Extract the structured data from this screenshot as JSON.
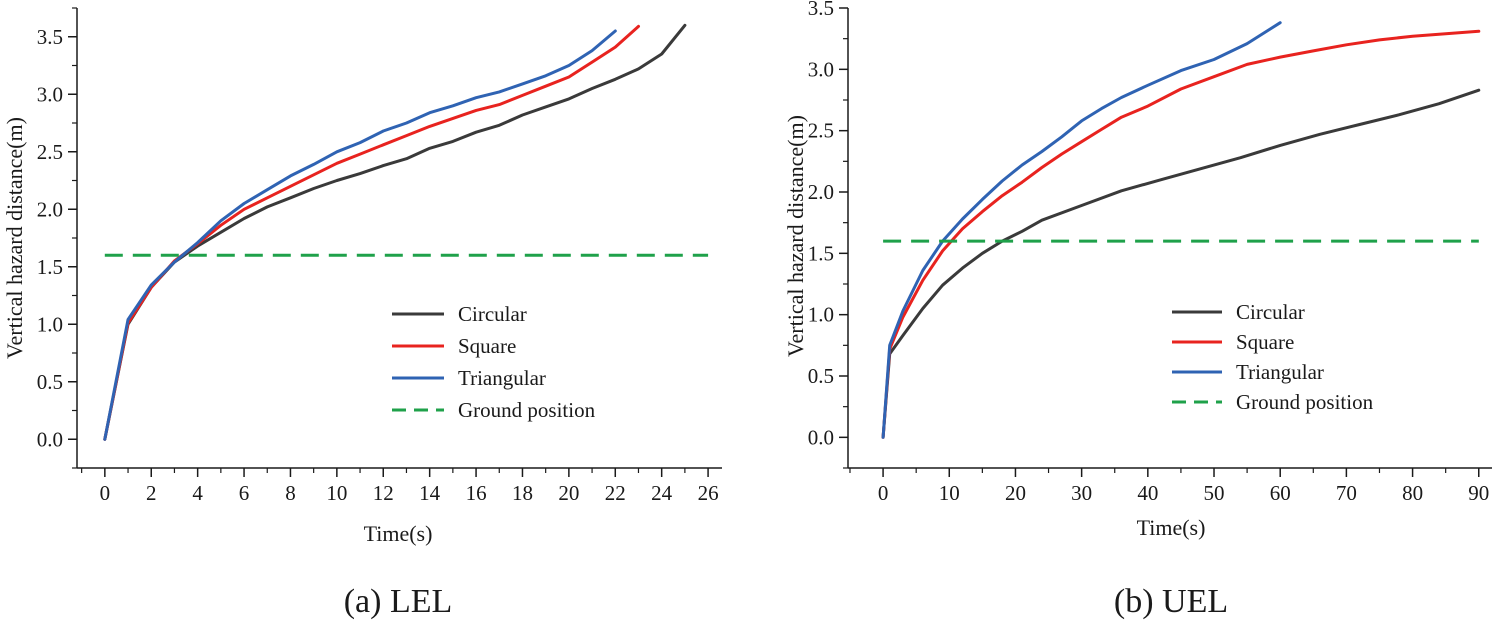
{
  "colors": {
    "circular": "#3a3a3a",
    "square": "#e8231f",
    "triangular": "#2f63b3",
    "ground": "#1fa14a",
    "axis": "#1a1a1a"
  },
  "chart_data": [
    {
      "type": "line",
      "caption": "(a) LEL",
      "xlabel": "Time(s)",
      "ylabel": "Vertical hazard distance(m)",
      "xlim": [
        -1.2,
        26.6
      ],
      "ylim": [
        -0.25,
        3.75
      ],
      "xticks": [
        0,
        2,
        4,
        6,
        8,
        10,
        12,
        14,
        16,
        18,
        20,
        22,
        24,
        26
      ],
      "yticks": [
        0.0,
        0.5,
        1.0,
        1.5,
        2.0,
        2.5,
        3.0,
        3.5
      ],
      "xtick_labels": [
        "0",
        "2",
        "4",
        "6",
        "8",
        "10",
        "12",
        "14",
        "16",
        "18",
        "20",
        "22",
        "24",
        "26"
      ],
      "ytick_labels": [
        "0.0",
        "0.5",
        "1.0",
        "1.5",
        "2.0",
        "2.5",
        "3.0",
        "3.5"
      ],
      "legend": {
        "placement": "lower-right",
        "entries": [
          "Circular",
          "Square",
          "Triangular",
          "Ground position"
        ]
      },
      "series": [
        {
          "name": "Circular",
          "color_key": "circular",
          "dashed": false,
          "x": [
            0,
            1,
            2,
            3,
            4,
            5,
            6,
            7,
            8,
            9,
            10,
            11,
            12,
            13,
            14,
            15,
            16,
            17,
            18,
            19,
            20,
            21,
            22,
            23,
            24,
            25
          ],
          "y": [
            0.0,
            1.0,
            1.32,
            1.54,
            1.68,
            1.8,
            1.92,
            2.02,
            2.1,
            2.18,
            2.25,
            2.31,
            2.38,
            2.44,
            2.53,
            2.59,
            2.67,
            2.73,
            2.82,
            2.89,
            2.96,
            3.05,
            3.13,
            3.22,
            3.35,
            3.6
          ]
        },
        {
          "name": "Square",
          "color_key": "square",
          "dashed": false,
          "x": [
            0,
            1,
            2,
            3,
            4,
            5,
            6,
            7,
            8,
            9,
            10,
            11,
            12,
            13,
            14,
            15,
            16,
            17,
            18,
            19,
            20,
            21,
            22,
            23
          ],
          "y": [
            0.0,
            1.01,
            1.32,
            1.55,
            1.7,
            1.86,
            2.0,
            2.1,
            2.2,
            2.3,
            2.4,
            2.48,
            2.56,
            2.64,
            2.72,
            2.79,
            2.86,
            2.91,
            2.99,
            3.07,
            3.15,
            3.28,
            3.41,
            3.59
          ]
        },
        {
          "name": "Triangular",
          "color_key": "triangular",
          "dashed": false,
          "x": [
            0,
            1,
            2,
            3,
            4,
            5,
            6,
            7,
            8,
            9,
            10,
            11,
            12,
            13,
            14,
            15,
            16,
            17,
            18,
            19,
            20,
            21,
            22
          ],
          "y": [
            0.0,
            1.04,
            1.34,
            1.54,
            1.71,
            1.9,
            2.05,
            2.17,
            2.29,
            2.39,
            2.5,
            2.58,
            2.68,
            2.75,
            2.84,
            2.9,
            2.97,
            3.02,
            3.09,
            3.16,
            3.25,
            3.38,
            3.55
          ]
        },
        {
          "name": "Ground position",
          "color_key": "ground",
          "dashed": true,
          "x": [
            0,
            26
          ],
          "y": [
            1.6,
            1.6
          ]
        }
      ]
    },
    {
      "type": "line",
      "caption": "(b) UEL",
      "xlabel": "Time(s)",
      "ylabel": "Vertical hazard distance(m)",
      "xlim": [
        -5.3,
        92.0
      ],
      "ylim": [
        -0.25,
        3.5
      ],
      "xticks": [
        0,
        10,
        20,
        30,
        40,
        50,
        60,
        70,
        80,
        90
      ],
      "yticks": [
        0.0,
        0.5,
        1.0,
        1.5,
        2.0,
        2.5,
        3.0,
        3.5
      ],
      "xtick_labels": [
        "0",
        "10",
        "20",
        "30",
        "40",
        "50",
        "60",
        "70",
        "80",
        "90"
      ],
      "ytick_labels": [
        "0.0",
        "0.5",
        "1.0",
        "1.5",
        "2.0",
        "2.5",
        "3.0",
        "3.5"
      ],
      "legend": {
        "placement": "lower-right",
        "entries": [
          "Circular",
          "Square",
          "Triangular",
          "Ground position"
        ]
      },
      "series": [
        {
          "name": "Circular",
          "color_key": "circular",
          "dashed": false,
          "x": [
            0,
            1,
            3,
            6,
            9,
            12,
            15,
            18,
            21,
            24,
            30,
            36,
            42,
            48,
            54,
            60,
            66,
            72,
            78,
            84,
            90
          ],
          "y": [
            0.0,
            0.68,
            0.83,
            1.05,
            1.24,
            1.38,
            1.5,
            1.6,
            1.68,
            1.77,
            1.89,
            2.01,
            2.1,
            2.19,
            2.28,
            2.38,
            2.47,
            2.55,
            2.63,
            2.72,
            2.83
          ]
        },
        {
          "name": "Square",
          "color_key": "square",
          "dashed": false,
          "x": [
            0,
            1,
            3,
            6,
            9,
            12,
            15,
            18,
            21,
            24,
            27,
            30,
            33,
            36,
            40,
            45,
            50,
            55,
            60,
            65,
            70,
            75,
            80,
            85,
            90
          ],
          "y": [
            0.0,
            0.72,
            0.98,
            1.28,
            1.52,
            1.7,
            1.84,
            1.97,
            2.08,
            2.2,
            2.31,
            2.41,
            2.51,
            2.61,
            2.7,
            2.84,
            2.94,
            3.04,
            3.1,
            3.15,
            3.2,
            3.24,
            3.27,
            3.29,
            3.31
          ]
        },
        {
          "name": "Triangular",
          "color_key": "triangular",
          "dashed": false,
          "x": [
            0,
            1,
            3,
            6,
            9,
            12,
            15,
            18,
            21,
            24,
            27,
            30,
            33,
            36,
            40,
            45,
            50,
            55,
            60
          ],
          "y": [
            0.0,
            0.75,
            1.03,
            1.36,
            1.6,
            1.78,
            1.94,
            2.09,
            2.22,
            2.33,
            2.45,
            2.58,
            2.68,
            2.77,
            2.87,
            2.99,
            3.08,
            3.21,
            3.38
          ]
        },
        {
          "name": "Ground position",
          "color_key": "ground",
          "dashed": true,
          "x": [
            0,
            90
          ],
          "y": [
            1.6,
            1.6
          ]
        }
      ]
    }
  ]
}
